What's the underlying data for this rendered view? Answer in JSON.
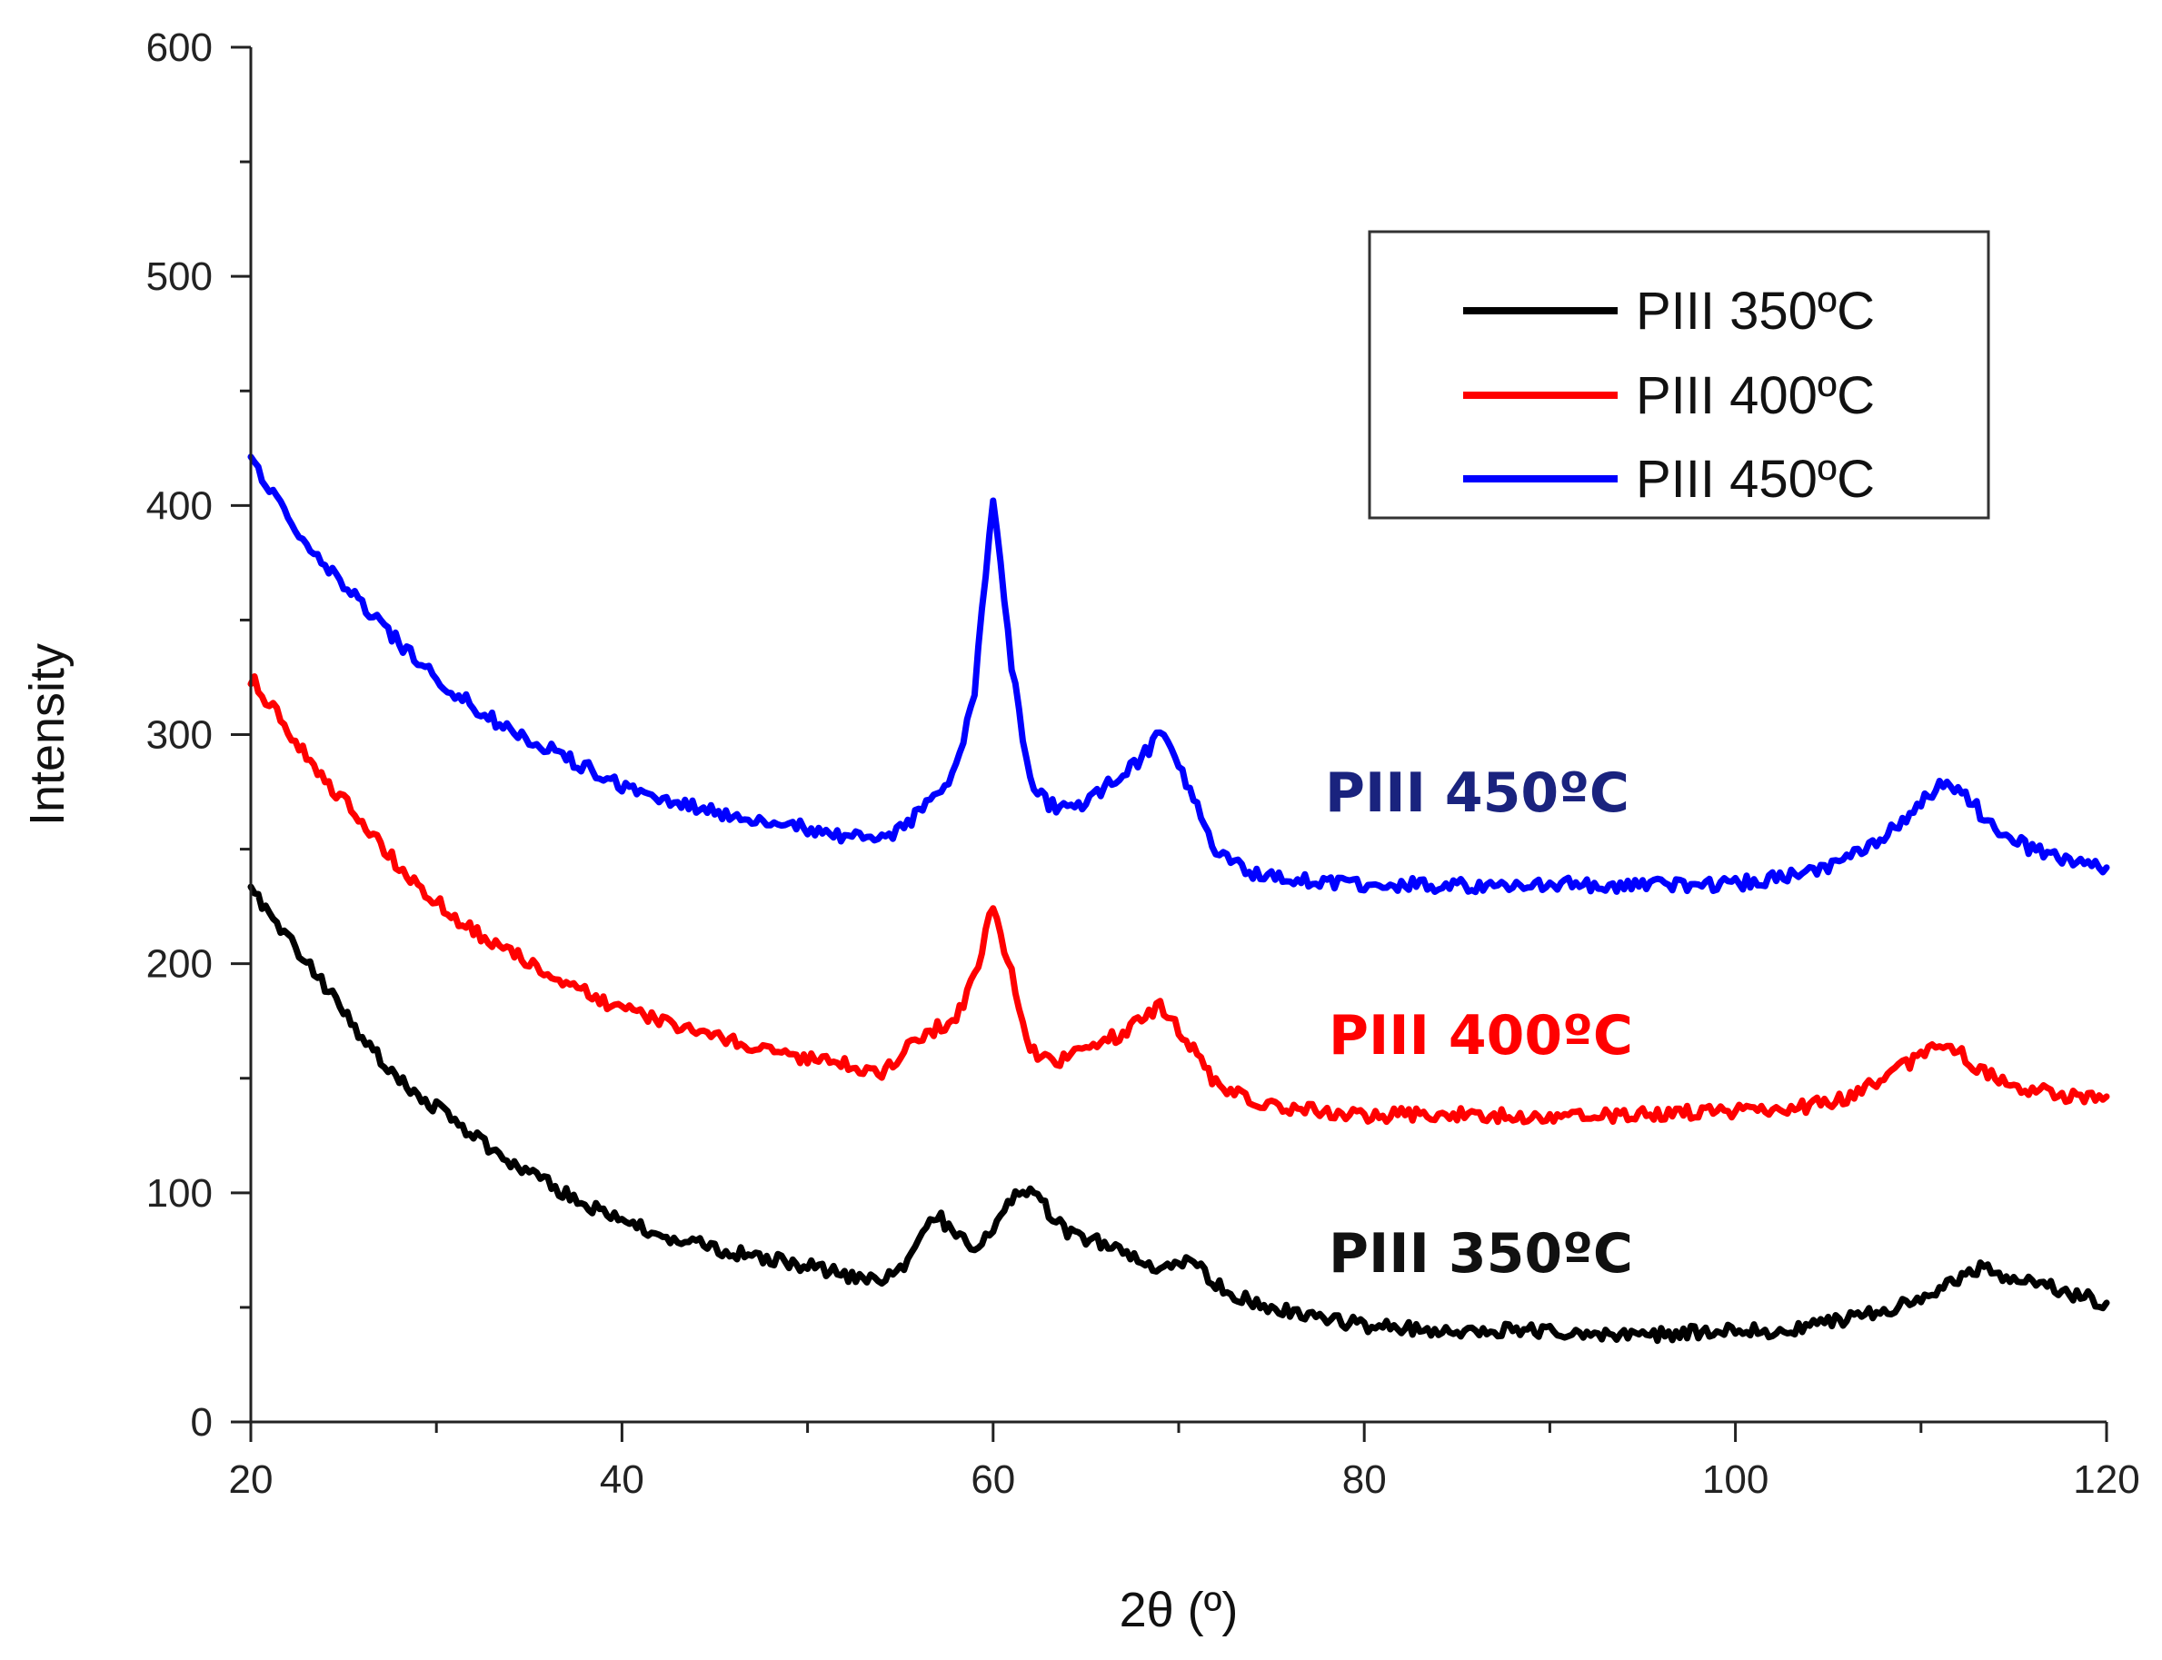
{
  "chart_data": {
    "type": "line",
    "title": "",
    "xlabel": "2θ (º)",
    "ylabel": "Intensity",
    "xlim": [
      20,
      120
    ],
    "ylim": [
      0,
      600
    ],
    "x_ticks": [
      20,
      40,
      60,
      80,
      100,
      120
    ],
    "x_tick_labels": [
      "20",
      "40",
      "60",
      "80",
      "100",
      "120"
    ],
    "y_ticks": [
      0,
      100,
      200,
      300,
      400,
      500,
      600
    ],
    "y_tick_labels": [
      "0",
      "100",
      "200",
      "300",
      "400",
      "500",
      "600"
    ],
    "grid": false,
    "legend_position": "top-right",
    "series": [
      {
        "name": "PIII 350ºC",
        "color": "#000000",
        "annotation": "PIII 350ºC",
        "annotation_color": "#111111",
        "x": [
          20,
          22,
          24,
          26,
          28,
          30,
          32,
          34,
          36,
          38,
          40,
          42,
          44,
          46,
          48,
          50,
          52,
          54,
          55,
          56,
          57,
          58,
          59,
          60,
          61,
          62,
          63,
          64,
          65,
          66,
          67,
          68,
          69,
          70,
          71,
          72,
          74,
          76,
          78,
          80,
          85,
          90,
          95,
          100,
          102,
          104,
          106,
          108,
          110,
          111,
          112,
          113,
          114,
          116,
          118,
          120
        ],
        "y": [
          232,
          212,
          190,
          168,
          150,
          137,
          125,
          113,
          104,
          95,
          88,
          82,
          78,
          74,
          71,
          68,
          64,
          61,
          66,
          80,
          90,
          82,
          77,
          85,
          98,
          100,
          92,
          83,
          80,
          78,
          75,
          70,
          68,
          70,
          68,
          60,
          52,
          48,
          45,
          42,
          40,
          40,
          38,
          40,
          40,
          42,
          45,
          48,
          54,
          58,
          63,
          67,
          65,
          62,
          56,
          52
        ]
      },
      {
        "name": "PIII 400ºC",
        "color": "#ff0000",
        "annotation": "PIII 400ºC",
        "annotation_color": "#ff0000",
        "x": [
          20,
          22,
          24,
          26,
          28,
          30,
          32,
          34,
          36,
          38,
          40,
          42,
          44,
          46,
          48,
          50,
          52,
          54,
          55,
          56,
          57,
          58,
          59,
          60,
          61,
          62,
          63,
          64,
          65,
          66,
          67,
          68,
          69,
          70,
          71,
          72,
          74,
          76,
          78,
          80,
          85,
          90,
          95,
          100,
          102,
          104,
          106,
          108,
          110,
          111,
          112,
          113,
          114,
          116,
          118,
          120
        ],
        "y": [
          325,
          302,
          280,
          262,
          242,
          227,
          214,
          205,
          196,
          188,
          180,
          175,
          170,
          166,
          162,
          159,
          156,
          152,
          160,
          168,
          172,
          175,
          195,
          226,
          195,
          162,
          157,
          159,
          162,
          166,
          170,
          176,
          182,
          172,
          160,
          148,
          140,
          137,
          135,
          134,
          134,
          133,
          134,
          136,
          137,
          138,
          142,
          150,
          160,
          165,
          162,
          155,
          150,
          145,
          142,
          142
        ]
      },
      {
        "name": "PIII 450ºC",
        "color": "#0000ff",
        "annotation": "PIII 450ºC",
        "annotation_color": "#1a237e",
        "x": [
          20,
          22,
          24,
          26,
          28,
          30,
          32,
          34,
          36,
          38,
          40,
          42,
          44,
          46,
          48,
          50,
          52,
          54,
          55,
          56,
          57,
          58,
          59,
          60,
          61,
          62,
          63,
          64,
          65,
          66,
          67,
          68,
          69,
          70,
          71,
          72,
          74,
          76,
          78,
          80,
          85,
          90,
          95,
          100,
          102,
          104,
          106,
          108,
          110,
          111,
          112,
          113,
          114,
          116,
          118,
          120
        ],
        "y": [
          420,
          395,
          375,
          356,
          340,
          325,
          312,
          302,
          294,
          286,
          278,
          272,
          268,
          265,
          262,
          259,
          256,
          254,
          258,
          266,
          275,
          285,
          320,
          402,
          330,
          280,
          270,
          267,
          270,
          277,
          282,
          290,
          300,
          288,
          268,
          248,
          240,
          237,
          236,
          235,
          234,
          235,
          234,
          235,
          237,
          240,
          246,
          256,
          270,
          277,
          276,
          268,
          258,
          250,
          244,
          242
        ]
      }
    ]
  }
}
